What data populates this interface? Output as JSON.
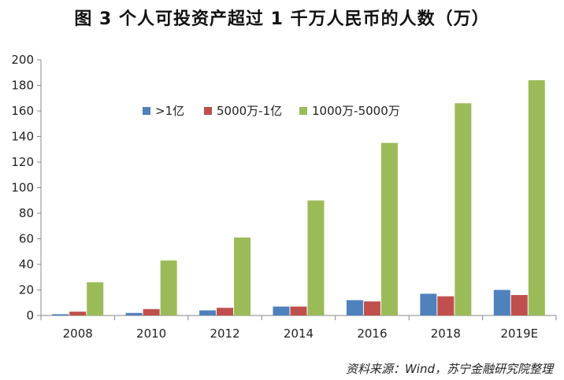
{
  "title": "图 3 个人可投资产超过 1 千万人民币的人数（万）",
  "source": "资料来源：Wind，苏宁金融研究院整理",
  "chart_data": {
    "type": "bar",
    "categories": [
      "2008",
      "2010",
      "2012",
      "2014",
      "2016",
      "2018",
      "2019E"
    ],
    "series": [
      {
        "name": ">1亿",
        "color": "#4F81BD",
        "values": [
          1,
          2,
          4,
          7,
          12,
          17,
          20
        ]
      },
      {
        "name": "5000万-1亿",
        "color": "#C0504D",
        "values": [
          3,
          5,
          6,
          7,
          11,
          15,
          16
        ]
      },
      {
        "name": "1000万-5000万",
        "color": "#9BBB59",
        "values": [
          26,
          43,
          61,
          90,
          135,
          166,
          184
        ]
      }
    ],
    "ylim": [
      0,
      200
    ],
    "yticks": [
      0,
      20,
      40,
      60,
      80,
      100,
      120,
      140,
      160,
      180,
      200
    ],
    "grid": false,
    "legend_position": "top-center"
  }
}
